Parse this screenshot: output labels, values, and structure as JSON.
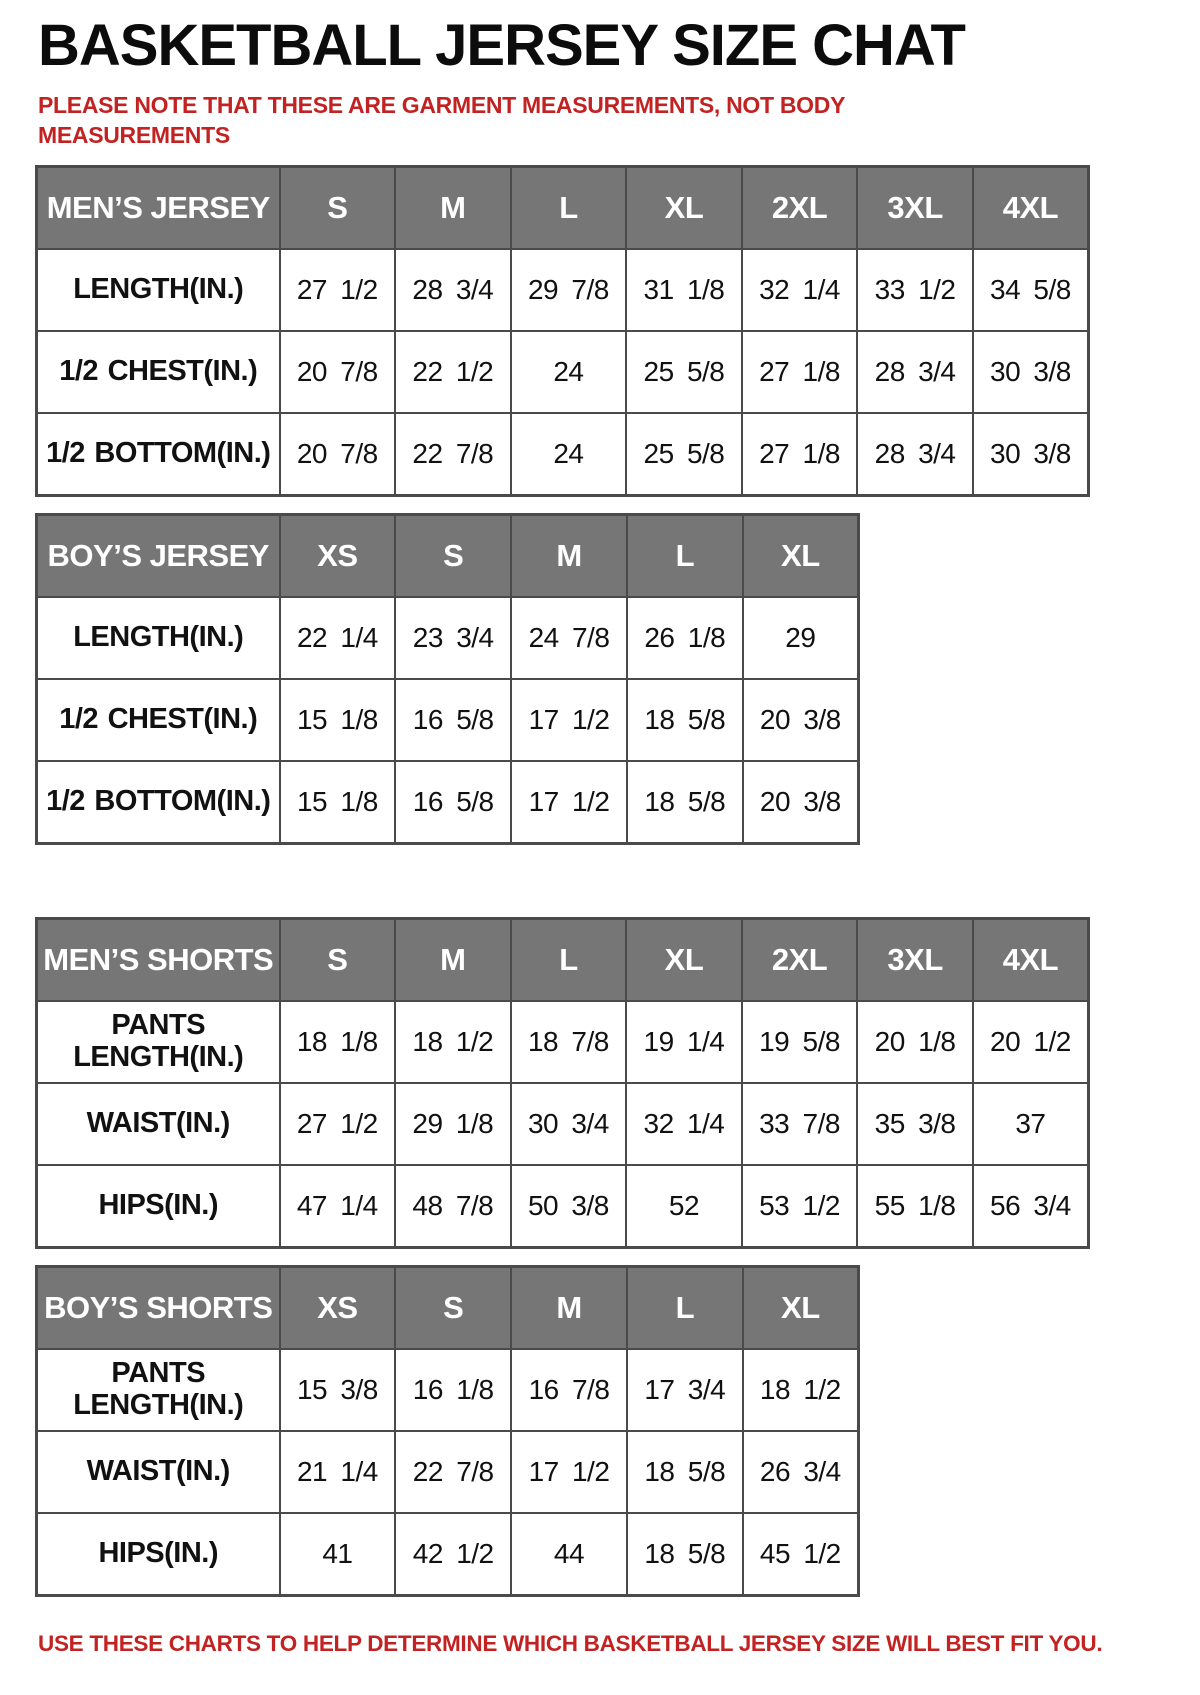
{
  "page": {
    "title": "BASKETBALL JERSEY SIZE CHAT",
    "note_top": "PLEASE NOTE THAT THESE ARE GARMENT MEASUREMENTS, NOT BODY MEASUREMENTS",
    "note_bottom": "USE THESE CHARTS TO HELP DETERMINE WHICH BASKETBALL JERSEY SIZE WILL BEST FIT YOU.",
    "colors": {
      "note-red": "#c32222",
      "header-bg": "#767676",
      "header-text": "#ffffff",
      "grid-border": "#4a4a4a",
      "cell-text": "#111111"
    }
  },
  "chart_data": [
    {
      "type": "table",
      "name": "mens-jersey",
      "header": [
        "MEN’S JERSEY",
        "S",
        "M",
        "L",
        "XL",
        "2XL",
        "3XL",
        "4XL"
      ],
      "rows": [
        [
          "LENGTH(IN.)",
          "27 1/2",
          "28 3/4",
          "29 7/8",
          "31 1/8",
          "32 1/4",
          "33 1/2",
          "34 5/8"
        ],
        [
          "1/2 CHEST(IN.)",
          "20 7/8",
          "22 1/2",
          "24",
          "25 5/8",
          "27 1/8",
          "28 3/4",
          "30 3/8"
        ],
        [
          "1/2 BOTTOM(IN.)",
          "20 7/8",
          "22 7/8",
          "24",
          "25 5/8",
          "27 1/8",
          "28 3/4",
          "30 3/8"
        ]
      ]
    },
    {
      "type": "table",
      "name": "boys-jersey",
      "header": [
        "BOY’S JERSEY",
        "XS",
        "S",
        "M",
        "L",
        "XL"
      ],
      "rows": [
        [
          "LENGTH(IN.)",
          "22 1/4",
          "23 3/4",
          "24 7/8",
          "26 1/8",
          "29"
        ],
        [
          "1/2 CHEST(IN.)",
          "15 1/8",
          "16 5/8",
          "17 1/2",
          "18 5/8",
          "20 3/8"
        ],
        [
          "1/2 BOTTOM(IN.)",
          "15 1/8",
          "16 5/8",
          "17 1/2",
          "18 5/8",
          "20 3/8"
        ]
      ]
    },
    {
      "type": "table",
      "name": "mens-shorts",
      "header": [
        "MEN’S SHORTS",
        "S",
        "M",
        "L",
        "XL",
        "2XL",
        "3XL",
        "4XL"
      ],
      "rows": [
        [
          "PANTS LENGTH(IN.)",
          "18 1/8",
          "18 1/2",
          "18 7/8",
          "19 1/4",
          "19 5/8",
          "20 1/8",
          "20 1/2"
        ],
        [
          "WAIST(IN.)",
          "27 1/2",
          "29 1/8",
          "30 3/4",
          "32 1/4",
          "33 7/8",
          "35 3/8",
          "37"
        ],
        [
          "HIPS(IN.)",
          "47 1/4",
          "48 7/8",
          "50 3/8",
          "52",
          "53 1/2",
          "55 1/8",
          "56 3/4"
        ]
      ]
    },
    {
      "type": "table",
      "name": "boys-shorts",
      "header": [
        "BOY’S SHORTS",
        "XS",
        "S",
        "M",
        "L",
        "XL"
      ],
      "rows": [
        [
          "PANTS LENGTH(IN.)",
          "15 3/8",
          "16 1/8",
          "16 7/8",
          "17 3/4",
          "18 1/2"
        ],
        [
          "WAIST(IN.)",
          "21 1/4",
          "22 7/8",
          "17 1/2",
          "18 5/8",
          "26 3/4"
        ],
        [
          "HIPS(IN.)",
          "41",
          "42 1/2",
          "44",
          "18 5/8",
          "45 1/2"
        ]
      ]
    }
  ]
}
